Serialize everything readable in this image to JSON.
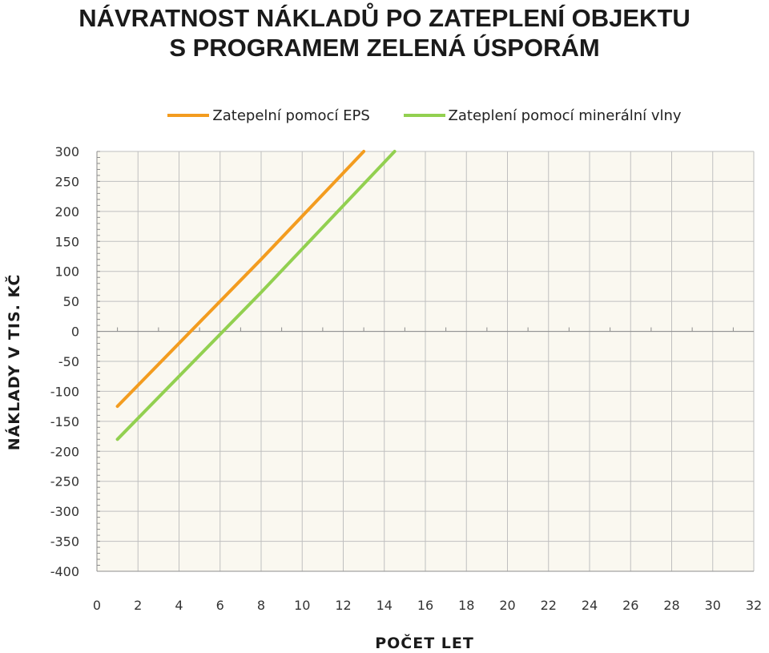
{
  "chart_data": {
    "type": "line",
    "title_line1": "NÁVRATNOST NÁKLADŮ PO ZATEPLENÍ OBJEKTU",
    "title_line2": "S PROGRAMEM ZELENÁ ÚSPORÁM",
    "xlabel": "POČET LET",
    "ylabel": "NÁKLADY V TIS. KČ",
    "xlim": [
      0,
      32
    ],
    "ylim": [
      -400,
      300
    ],
    "xticks": [
      0,
      2,
      4,
      6,
      8,
      10,
      12,
      14,
      16,
      18,
      20,
      22,
      24,
      26,
      28,
      30,
      32
    ],
    "yticks": [
      300,
      250,
      200,
      150,
      100,
      50,
      0,
      -50,
      -100,
      -150,
      -200,
      -250,
      -300,
      -350,
      -400
    ],
    "grid": true,
    "legend_position": "top",
    "series": [
      {
        "name": "Zatepelní pomocí EPS",
        "color": "#f39c1f",
        "x": [
          1,
          8,
          13
        ],
        "y": [
          -125,
          120,
          300
        ]
      },
      {
        "name": "Zateplení pomocí minerální vlny",
        "color": "#92d050",
        "x": [
          1,
          8,
          14.5
        ],
        "y": [
          -180,
          65,
          300
        ]
      }
    ]
  }
}
